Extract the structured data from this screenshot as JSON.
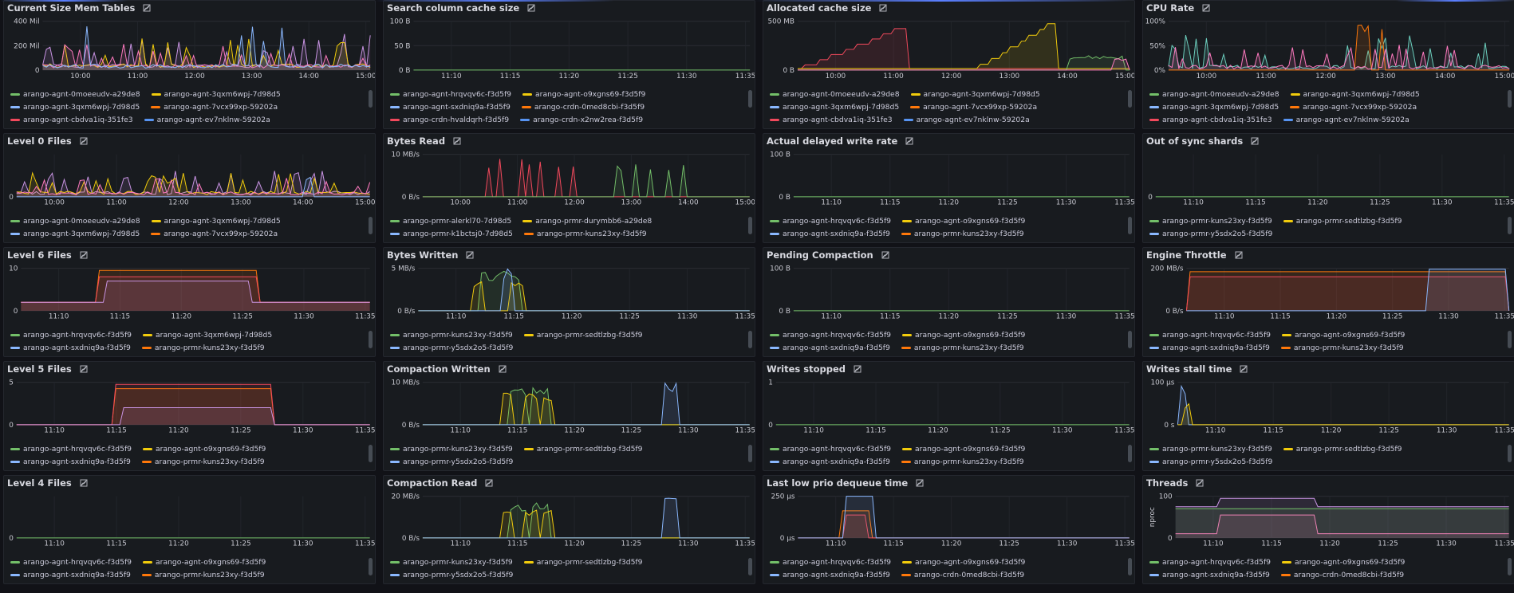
{
  "colors": {
    "green": "#73bf69",
    "yellow": "#f2cc0c",
    "blue": "#8ab8ff",
    "orange": "#ff780a",
    "red": "#f2495c",
    "darkblue": "#5794f2",
    "purple": "#ca95e5",
    "pink": "#ff7ac0",
    "teal": "#6ccfbe"
  },
  "panels": [
    {
      "title": "Current Size Mem Tables",
      "yticks": [
        "400 Mil",
        "200 Mil",
        "0"
      ],
      "xticks": [
        "10:00",
        "11:00",
        "12:00",
        "13:00",
        "14:00",
        "15:00"
      ],
      "legend": [
        [
          {
            "label": "arango-agnt-0moeeudv-a29de8",
            "color": "green"
          },
          {
            "label": "arango-agnt-3qxm6wpj-7d98d5",
            "color": "yellow"
          }
        ],
        [
          {
            "label": "arango-agnt-3qxm6wpj-7d98d5",
            "color": "blue"
          },
          {
            "label": "arango-agnt-7vcx99xp-59202a",
            "color": "orange"
          }
        ],
        [
          {
            "label": "arango-agnt-cbdva1iq-351fe3",
            "color": "red"
          },
          {
            "label": "arango-agnt-ev7nklnw-59202a",
            "color": "darkblue"
          }
        ]
      ]
    },
    {
      "title": "Search column cache size",
      "yticks": [
        "100 B",
        "50 B",
        "0 B"
      ],
      "xticks": [
        "11:10",
        "11:15",
        "11:20",
        "11:25",
        "11:30",
        "11:35"
      ],
      "legend": [
        [
          {
            "label": "arango-agnt-hrqvqv6c-f3d5f9",
            "color": "green"
          },
          {
            "label": "arango-agnt-o9xgns69-f3d5f9",
            "color": "yellow"
          }
        ],
        [
          {
            "label": "arango-agnt-sxdniq9a-f3d5f9",
            "color": "blue"
          },
          {
            "label": "arango-crdn-0med8cbi-f3d5f9",
            "color": "orange"
          }
        ],
        [
          {
            "label": "arango-crdn-hvaldqrh-f3d5f9",
            "color": "red"
          },
          {
            "label": "arango-crdn-x2nw2rea-f3d5f9",
            "color": "darkblue"
          }
        ]
      ]
    },
    {
      "title": "Allocated cache size",
      "yticks": [
        "500 MB",
        "0 B"
      ],
      "xticks": [
        "10:00",
        "11:00",
        "12:00",
        "13:00",
        "14:00",
        "15:00"
      ],
      "legend": [
        [
          {
            "label": "arango-agnt-0moeeudv-a29de8",
            "color": "green"
          },
          {
            "label": "arango-agnt-3qxm6wpj-7d98d5",
            "color": "yellow"
          }
        ],
        [
          {
            "label": "arango-agnt-3qxm6wpj-7d98d5",
            "color": "blue"
          },
          {
            "label": "arango-agnt-7vcx99xp-59202a",
            "color": "orange"
          }
        ],
        [
          {
            "label": "arango-agnt-cbdva1iq-351fe3",
            "color": "red"
          },
          {
            "label": "arango-agnt-ev7nklnw-59202a",
            "color": "darkblue"
          }
        ]
      ]
    },
    {
      "title": "CPU Rate",
      "yticks": [
        "100%",
        "50%",
        "0%"
      ],
      "xticks": [
        "10:00",
        "11:00",
        "12:00",
        "13:00",
        "14:00",
        "15:00"
      ],
      "legend": [
        [
          {
            "label": "arango-agnt-0moeeudv-a29de8",
            "color": "green"
          },
          {
            "label": "arango-agnt-3qxm6wpj-7d98d5",
            "color": "yellow"
          }
        ],
        [
          {
            "label": "arango-agnt-3qxm6wpj-7d98d5",
            "color": "blue"
          },
          {
            "label": "arango-agnt-7vcx99xp-59202a",
            "color": "orange"
          }
        ],
        [
          {
            "label": "arango-agnt-cbdva1iq-351fe3",
            "color": "red"
          },
          {
            "label": "arango-agnt-ev7nklnw-59202a",
            "color": "darkblue"
          }
        ]
      ]
    },
    {
      "title": "Level 0 Files",
      "yticks": [
        "0"
      ],
      "xticks": [
        "10:00",
        "11:00",
        "12:00",
        "13:00",
        "14:00",
        "15:00"
      ],
      "legend": [
        [
          {
            "label": "arango-agnt-0moeeudv-a29de8",
            "color": "green"
          },
          {
            "label": "arango-agnt-3qxm6wpj-7d98d5",
            "color": "yellow"
          }
        ],
        [
          {
            "label": "arango-agnt-3qxm6wpj-7d98d5",
            "color": "blue"
          },
          {
            "label": "arango-agnt-7vcx99xp-59202a",
            "color": "orange"
          }
        ]
      ]
    },
    {
      "title": "Bytes Read",
      "yticks": [
        "10 MB/s",
        "0 B/s"
      ],
      "xticks": [
        "10:00",
        "11:00",
        "12:00",
        "13:00",
        "14:00",
        "15:00"
      ],
      "legend": [
        [
          {
            "label": "arango-prmr-alerkl70-7d98d5",
            "color": "green"
          },
          {
            "label": "arango-prmr-durymbb6-a29de8",
            "color": "yellow"
          }
        ],
        [
          {
            "label": "arango-prmr-k1bctsj0-7d98d5",
            "color": "blue"
          },
          {
            "label": "arango-prmr-kuns23xy-f3d5f9",
            "color": "orange"
          }
        ]
      ]
    },
    {
      "title": "Actual delayed write rate",
      "yticks": [
        "100 B",
        "0 B"
      ],
      "xticks": [
        "11:10",
        "11:15",
        "11:20",
        "11:25",
        "11:30",
        "11:35"
      ],
      "legend": [
        [
          {
            "label": "arango-agnt-hrqvqv6c-f3d5f9",
            "color": "green"
          },
          {
            "label": "arango-agnt-o9xgns69-f3d5f9",
            "color": "yellow"
          }
        ],
        [
          {
            "label": "arango-agnt-sxdniq9a-f3d5f9",
            "color": "blue"
          },
          {
            "label": "arango-prmr-kuns23xy-f3d5f9",
            "color": "orange"
          }
        ]
      ]
    },
    {
      "title": "Out of sync shards",
      "yticks": [
        "0"
      ],
      "xticks": [
        "11:10",
        "11:15",
        "11:20",
        "11:25",
        "11:30",
        "11:35"
      ],
      "legend": [
        [
          {
            "label": "arango-prmr-kuns23xy-f3d5f9",
            "color": "green"
          },
          {
            "label": "arango-prmr-sedtlzbg-f3d5f9",
            "color": "yellow"
          }
        ],
        [
          {
            "label": "arango-prmr-y5sdx2o5-f3d5f9",
            "color": "blue"
          }
        ]
      ]
    },
    {
      "title": "Level 6 Files",
      "yticks": [
        "10",
        "0"
      ],
      "xticks": [
        "11:10",
        "11:15",
        "11:20",
        "11:25",
        "11:30",
        "11:35"
      ],
      "legend": [
        [
          {
            "label": "arango-agnt-hrqvqv6c-f3d5f9",
            "color": "green"
          },
          {
            "label": "arango-agnt-3qxm6wpj-7d98d5",
            "color": "yellow"
          }
        ],
        [
          {
            "label": "arango-agnt-sxdniq9a-f3d5f9",
            "color": "blue"
          },
          {
            "label": "arango-prmr-kuns23xy-f3d5f9",
            "color": "orange"
          }
        ]
      ]
    },
    {
      "title": "Bytes Written",
      "yticks": [
        "5 MB/s",
        "0 B/s"
      ],
      "xticks": [
        "11:10",
        "11:15",
        "11:20",
        "11:25",
        "11:30",
        "11:35"
      ],
      "legend": [
        [
          {
            "label": "arango-prmr-kuns23xy-f3d5f9",
            "color": "green"
          },
          {
            "label": "arango-prmr-sedtlzbg-f3d5f9",
            "color": "yellow"
          }
        ],
        [
          {
            "label": "arango-prmr-y5sdx2o5-f3d5f9",
            "color": "blue"
          }
        ]
      ]
    },
    {
      "title": "Pending Compaction",
      "yticks": [
        "100 B",
        "0 B"
      ],
      "xticks": [
        "11:10",
        "11:15",
        "11:20",
        "11:25",
        "11:30",
        "11:35"
      ],
      "legend": [
        [
          {
            "label": "arango-agnt-hrqvqv6c-f3d5f9",
            "color": "green"
          },
          {
            "label": "arango-agnt-o9xgns69-f3d5f9",
            "color": "yellow"
          }
        ],
        [
          {
            "label": "arango-agnt-sxdniq9a-f3d5f9",
            "color": "blue"
          },
          {
            "label": "arango-prmr-kuns23xy-f3d5f9",
            "color": "orange"
          }
        ]
      ]
    },
    {
      "title": "Engine Throttle",
      "yticks": [
        "200 MB/s",
        "0 B/s"
      ],
      "xticks": [
        "11:10",
        "11:15",
        "11:20",
        "11:25",
        "11:30",
        "11:35"
      ],
      "legend": [
        [
          {
            "label": "arango-agnt-hrqvqv6c-f3d5f9",
            "color": "green"
          },
          {
            "label": "arango-agnt-o9xgns69-f3d5f9",
            "color": "yellow"
          }
        ],
        [
          {
            "label": "arango-agnt-sxdniq9a-f3d5f9",
            "color": "blue"
          },
          {
            "label": "arango-prmr-kuns23xy-f3d5f9",
            "color": "orange"
          }
        ]
      ]
    },
    {
      "title": "Level 5 Files",
      "yticks": [
        "5",
        "0"
      ],
      "xticks": [
        "11:10",
        "11:15",
        "11:20",
        "11:25",
        "11:30",
        "11:35"
      ],
      "legend": [
        [
          {
            "label": "arango-agnt-hrqvqv6c-f3d5f9",
            "color": "green"
          },
          {
            "label": "arango-agnt-o9xgns69-f3d5f9",
            "color": "yellow"
          }
        ],
        [
          {
            "label": "arango-agnt-sxdniq9a-f3d5f9",
            "color": "blue"
          },
          {
            "label": "arango-prmr-kuns23xy-f3d5f9",
            "color": "orange"
          }
        ]
      ]
    },
    {
      "title": "Compaction Written",
      "yticks": [
        "10 MB/s",
        "0 B/s"
      ],
      "xticks": [
        "11:10",
        "11:15",
        "11:20",
        "11:25",
        "11:30",
        "11:35"
      ],
      "legend": [
        [
          {
            "label": "arango-prmr-kuns23xy-f3d5f9",
            "color": "green"
          },
          {
            "label": "arango-prmr-sedtlzbg-f3d5f9",
            "color": "yellow"
          }
        ],
        [
          {
            "label": "arango-prmr-y5sdx2o5-f3d5f9",
            "color": "blue"
          }
        ]
      ]
    },
    {
      "title": "Writes stopped",
      "yticks": [
        "1",
        "0"
      ],
      "xticks": [
        "11:10",
        "11:15",
        "11:20",
        "11:25",
        "11:30",
        "11:35"
      ],
      "legend": [
        [
          {
            "label": "arango-agnt-hrqvqv6c-f3d5f9",
            "color": "green"
          },
          {
            "label": "arango-agnt-o9xgns69-f3d5f9",
            "color": "yellow"
          }
        ],
        [
          {
            "label": "arango-agnt-sxdniq9a-f3d5f9",
            "color": "blue"
          },
          {
            "label": "arango-prmr-kuns23xy-f3d5f9",
            "color": "orange"
          }
        ]
      ]
    },
    {
      "title": "Writes stall time",
      "yticks": [
        "100 µs",
        "0 s"
      ],
      "xticks": [
        "11:10",
        "11:15",
        "11:20",
        "11:25",
        "11:30",
        "11:35"
      ],
      "legend": [
        [
          {
            "label": "arango-prmr-kuns23xy-f3d5f9",
            "color": "green"
          },
          {
            "label": "arango-prmr-sedtlzbg-f3d5f9",
            "color": "yellow"
          }
        ],
        [
          {
            "label": "arango-prmr-y5sdx2o5-f3d5f9",
            "color": "blue"
          }
        ]
      ]
    },
    {
      "title": "Level 4 Files",
      "yticks": [
        "0"
      ],
      "xticks": [
        "11:10",
        "11:15",
        "11:20",
        "11:25",
        "11:30",
        "11:35"
      ],
      "legend": [
        [
          {
            "label": "arango-agnt-hrqvqv6c-f3d5f9",
            "color": "green"
          },
          {
            "label": "arango-agnt-o9xgns69-f3d5f9",
            "color": "yellow"
          }
        ],
        [
          {
            "label": "arango-agnt-sxdniq9a-f3d5f9",
            "color": "blue"
          },
          {
            "label": "arango-prmr-kuns23xy-f3d5f9",
            "color": "orange"
          }
        ]
      ]
    },
    {
      "title": "Compaction Read",
      "yticks": [
        "20 MB/s",
        "0 B/s"
      ],
      "xticks": [
        "11:10",
        "11:15",
        "11:20",
        "11:25",
        "11:30",
        "11:35"
      ],
      "legend": [
        [
          {
            "label": "arango-prmr-kuns23xy-f3d5f9",
            "color": "green"
          },
          {
            "label": "arango-prmr-sedtlzbg-f3d5f9",
            "color": "yellow"
          }
        ],
        [
          {
            "label": "arango-prmr-y5sdx2o5-f3d5f9",
            "color": "blue"
          }
        ]
      ]
    },
    {
      "title": "Last low prio dequeue time",
      "yticks": [
        "250 µs",
        "0 µs"
      ],
      "xticks": [
        "11:10",
        "11:15",
        "11:20",
        "11:25",
        "11:30",
        "11:35"
      ],
      "legend": [
        [
          {
            "label": "arango-agnt-hrqvqv6c-f3d5f9",
            "color": "green"
          },
          {
            "label": "arango-agnt-o9xgns69-f3d5f9",
            "color": "yellow"
          }
        ],
        [
          {
            "label": "arango-agnt-sxdniq9a-f3d5f9",
            "color": "blue"
          },
          {
            "label": "arango-crdn-0med8cbi-f3d5f9",
            "color": "orange"
          }
        ]
      ]
    },
    {
      "title": "Threads",
      "ylabel": "nproc",
      "yticks": [
        "100",
        "0"
      ],
      "xticks": [
        "11:10",
        "11:15",
        "11:20",
        "11:25",
        "11:30",
        "11:35"
      ],
      "legend": [
        [
          {
            "label": "arango-agnt-hrqvqv6c-f3d5f9",
            "color": "green"
          },
          {
            "label": "arango-agnt-o9xgns69-f3d5f9",
            "color": "yellow"
          }
        ],
        [
          {
            "label": "arango-agnt-sxdniq9a-f3d5f9",
            "color": "blue"
          },
          {
            "label": "arango-crdn-0med8cbi-f3d5f9",
            "color": "orange"
          }
        ]
      ]
    }
  ]
}
